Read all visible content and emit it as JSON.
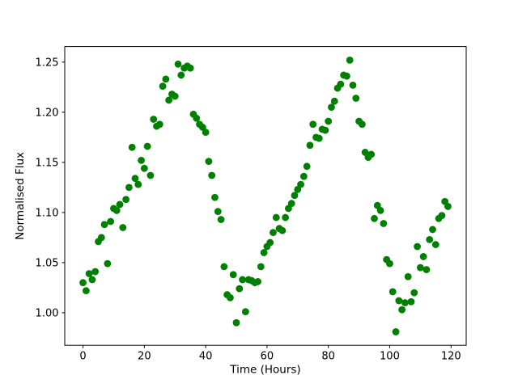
{
  "figure": {
    "background": "#ffffff",
    "frame_color": "#000000"
  },
  "chart_data": {
    "type": "scatter",
    "title": "",
    "xlabel": "Time (Hours)",
    "ylabel": "Normalised Flux",
    "legend": "none",
    "grid": false,
    "marker": "circle",
    "marker_color": "#008000",
    "marker_radius_px": 4.4,
    "xlim": [
      -5.95,
      124.95
    ],
    "ylim": [
      0.9675,
      1.2655
    ],
    "xticks": [
      0,
      20,
      40,
      60,
      80,
      100,
      120
    ],
    "xtick_labels": [
      "0",
      "20",
      "40",
      "60",
      "80",
      "100",
      "120"
    ],
    "yticks": [
      1.0,
      1.05,
      1.1,
      1.15,
      1.2,
      1.25
    ],
    "ytick_labels": [
      "1.00",
      "1.05",
      "1.10",
      "1.15",
      "1.20",
      "1.25"
    ],
    "x": [
      0,
      1,
      2,
      3,
      4,
      5,
      6,
      7,
      8,
      9,
      10,
      11,
      12,
      13,
      14,
      15,
      16,
      17,
      18,
      19,
      20,
      21,
      22,
      23,
      24,
      25,
      26,
      27,
      28,
      29,
      30,
      31,
      32,
      33,
      34,
      35,
      36,
      37,
      38,
      39,
      40,
      41,
      42,
      43,
      44,
      45,
      46,
      47,
      48,
      49,
      50,
      51,
      52,
      53,
      54,
      55,
      56,
      57,
      58,
      59,
      60,
      61,
      62,
      63,
      64,
      65,
      66,
      67,
      68,
      69,
      70,
      71,
      72,
      73,
      74,
      75,
      76,
      77,
      78,
      79,
      80,
      81,
      82,
      83,
      84,
      85,
      86,
      87,
      88,
      89,
      90,
      91,
      92,
      93,
      94,
      95,
      96,
      97,
      98,
      99,
      100,
      101,
      102,
      103,
      104,
      105,
      106,
      107,
      108,
      109,
      110,
      111,
      112,
      113,
      114,
      115,
      116,
      117,
      118,
      119
    ],
    "y": [
      1.03,
      1.022,
      1.039,
      1.033,
      1.041,
      1.071,
      1.075,
      1.088,
      1.049,
      1.091,
      1.104,
      1.102,
      1.108,
      1.085,
      1.113,
      1.125,
      1.165,
      1.134,
      1.128,
      1.152,
      1.144,
      1.166,
      1.137,
      1.193,
      1.186,
      1.188,
      1.226,
      1.233,
      1.212,
      1.218,
      1.216,
      1.248,
      1.237,
      1.244,
      1.246,
      1.244,
      1.198,
      1.194,
      1.188,
      1.185,
      1.18,
      1.151,
      1.137,
      1.115,
      1.101,
      1.093,
      1.046,
      1.018,
      1.015,
      1.038,
      0.99,
      1.024,
      1.033,
      1.001,
      1.033,
      1.032,
      1.03,
      1.031,
      1.046,
      1.06,
      1.066,
      1.07,
      1.08,
      1.095,
      1.084,
      1.082,
      1.095,
      1.104,
      1.109,
      1.117,
      1.123,
      1.128,
      1.136,
      1.146,
      1.167,
      1.188,
      1.175,
      1.174,
      1.183,
      1.182,
      1.191,
      1.205,
      1.211,
      1.224,
      1.228,
      1.237,
      1.236,
      1.252,
      1.227,
      1.214,
      1.191,
      1.188,
      1.16,
      1.155,
      1.158,
      1.094,
      1.107,
      1.102,
      1.089,
      1.053,
      1.049,
      1.021,
      0.981,
      1.012,
      1.003,
      1.01,
      1.036,
      1.011,
      1.02,
      1.066,
      1.045,
      1.056,
      1.043,
      1.073,
      1.083,
      1.068,
      1.094,
      1.097,
      1.111,
      1.106
    ]
  }
}
